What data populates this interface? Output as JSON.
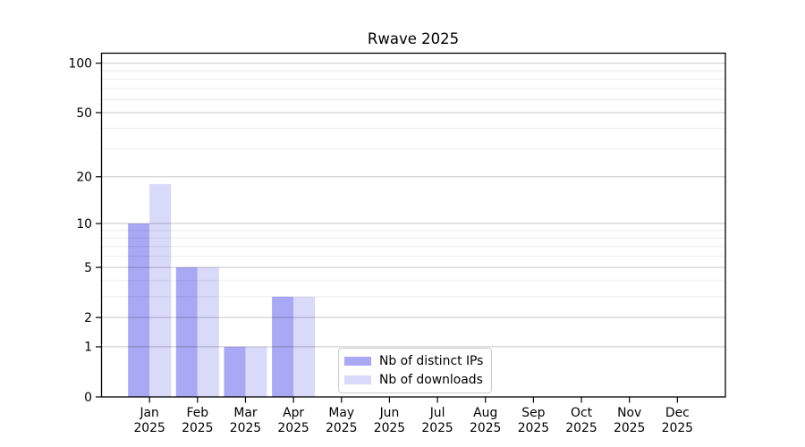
{
  "chart_data": {
    "type": "bar",
    "title": "Rwave 2025",
    "categories": [
      "Jan",
      "Feb",
      "Mar",
      "Apr",
      "May",
      "Jun",
      "Jul",
      "Aug",
      "Sep",
      "Oct",
      "Nov",
      "Dec"
    ],
    "year_label": "2025",
    "series": [
      {
        "name": "Nb of distinct IPs",
        "color": "#a8a8f5",
        "values": [
          10,
          5,
          1,
          3,
          0,
          0,
          0,
          0,
          0,
          0,
          0,
          0
        ]
      },
      {
        "name": "Nb of downloads",
        "color": "#d9d9fa",
        "values": [
          18,
          5,
          1,
          3,
          0,
          0,
          0,
          0,
          0,
          0,
          0,
          0
        ]
      }
    ],
    "xlabel": "",
    "ylabel": "",
    "y_scale": "log1p",
    "y_ticks": [
      0,
      1,
      2,
      5,
      10,
      20,
      50,
      100
    ],
    "y_minor_ticks": [
      3,
      4,
      6,
      7,
      8,
      9,
      30,
      40,
      60,
      70,
      80,
      90
    ],
    "ylim": [
      0,
      115
    ],
    "grid": "horizontal",
    "legend_position": "lower-center-inside",
    "colors": {
      "major_gridline": "#c6c6c6",
      "minor_gridline": "#ebebeb",
      "spine": "#000000",
      "text": "#000000"
    }
  }
}
